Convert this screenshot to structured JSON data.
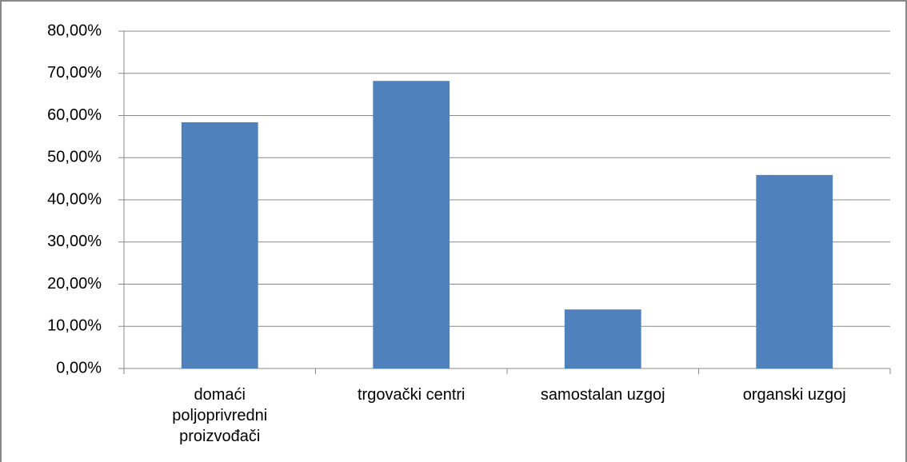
{
  "chart_data": {
    "type": "bar",
    "categories": [
      "domaći poljoprivredni proizvođači",
      "trgovački centri",
      "samostalan uzgoj",
      "organski uzgoj"
    ],
    "values": [
      58.4,
      68.2,
      14.0,
      45.9
    ],
    "color": "#4f81bd",
    "ylim": [
      0,
      80
    ],
    "yticks": [
      {
        "value": 0,
        "label": "0,00%"
      },
      {
        "value": 10,
        "label": "10,00%"
      },
      {
        "value": 20,
        "label": "20,00%"
      },
      {
        "value": 30,
        "label": "30,00%"
      },
      {
        "value": 40,
        "label": "40,00%"
      },
      {
        "value": 50,
        "label": "50,00%"
      },
      {
        "value": 60,
        "label": "60,00%"
      },
      {
        "value": 70,
        "label": "70,00%"
      },
      {
        "value": 80,
        "label": "80,00%"
      }
    ],
    "grid": true
  }
}
